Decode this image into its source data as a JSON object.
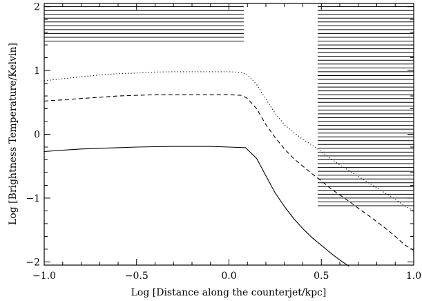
{
  "chart_data": {
    "type": "line",
    "title": "",
    "xlabel": "Log [Distance along the counterjet/kpc]",
    "ylabel": "Log [Brightness Temperature/Kelvin]",
    "xlim": [
      -1.0,
      1.0
    ],
    "ylim": [
      -2.05,
      2.05
    ],
    "xticks": [
      -1.0,
      -0.5,
      0.0,
      0.5,
      1.0
    ],
    "xtick_labels": [
      "−1.0",
      "−0.5",
      "0.0",
      "0.5",
      "1.0"
    ],
    "yticks": [
      -2,
      -1,
      0,
      1,
      2
    ],
    "ytick_labels": [
      "−2",
      "−1",
      "0",
      "1",
      "2"
    ],
    "grid": false,
    "legend": "none",
    "series": [
      {
        "style": "dotted",
        "points": [
          [
            -1.0,
            0.84
          ],
          [
            -0.9,
            0.87
          ],
          [
            -0.8,
            0.9
          ],
          [
            -0.7,
            0.93
          ],
          [
            -0.6,
            0.95
          ],
          [
            -0.5,
            0.96
          ],
          [
            -0.4,
            0.975
          ],
          [
            -0.3,
            0.98
          ],
          [
            -0.2,
            0.98
          ],
          [
            -0.1,
            0.98
          ],
          [
            0.0,
            0.98
          ],
          [
            0.07,
            0.97
          ],
          [
            0.1,
            0.93
          ],
          [
            0.15,
            0.78
          ],
          [
            0.2,
            0.55
          ],
          [
            0.25,
            0.33
          ],
          [
            0.3,
            0.15
          ],
          [
            0.35,
            0.03
          ],
          [
            0.4,
            -0.08
          ],
          [
            0.45,
            -0.17
          ],
          [
            0.5,
            -0.27
          ],
          [
            0.55,
            -0.38
          ],
          [
            0.6,
            -0.48
          ],
          [
            0.65,
            -0.57
          ],
          [
            0.7,
            -0.66
          ],
          [
            0.75,
            -0.75
          ],
          [
            0.8,
            -0.84
          ],
          [
            0.85,
            -0.93
          ],
          [
            0.9,
            -1.02
          ],
          [
            0.95,
            -1.12
          ],
          [
            1.0,
            -1.2
          ]
        ]
      },
      {
        "style": "dashed",
        "points": [
          [
            -1.0,
            0.52
          ],
          [
            -0.9,
            0.54
          ],
          [
            -0.8,
            0.56
          ],
          [
            -0.7,
            0.58
          ],
          [
            -0.6,
            0.6
          ],
          [
            -0.5,
            0.61
          ],
          [
            -0.4,
            0.62
          ],
          [
            -0.3,
            0.62
          ],
          [
            -0.2,
            0.62
          ],
          [
            -0.1,
            0.62
          ],
          [
            0.0,
            0.62
          ],
          [
            0.07,
            0.61
          ],
          [
            0.1,
            0.56
          ],
          [
            0.15,
            0.4
          ],
          [
            0.2,
            0.15
          ],
          [
            0.25,
            -0.05
          ],
          [
            0.3,
            -0.23
          ],
          [
            0.35,
            -0.38
          ],
          [
            0.4,
            -0.5
          ],
          [
            0.45,
            -0.62
          ],
          [
            0.5,
            -0.73
          ],
          [
            0.55,
            -0.85
          ],
          [
            0.6,
            -0.95
          ],
          [
            0.65,
            -1.05
          ],
          [
            0.7,
            -1.16
          ],
          [
            0.75,
            -1.26
          ],
          [
            0.8,
            -1.37
          ],
          [
            0.85,
            -1.48
          ],
          [
            0.9,
            -1.6
          ],
          [
            0.95,
            -1.73
          ],
          [
            1.0,
            -1.82
          ]
        ]
      },
      {
        "style": "solid",
        "points": [
          [
            -1.0,
            -0.27
          ],
          [
            -0.9,
            -0.25
          ],
          [
            -0.8,
            -0.23
          ],
          [
            -0.7,
            -0.22
          ],
          [
            -0.6,
            -0.21
          ],
          [
            -0.5,
            -0.2
          ],
          [
            -0.4,
            -0.195
          ],
          [
            -0.3,
            -0.19
          ],
          [
            -0.2,
            -0.19
          ],
          [
            -0.1,
            -0.19
          ],
          [
            0.0,
            -0.2
          ],
          [
            0.09,
            -0.21
          ],
          [
            0.15,
            -0.38
          ],
          [
            0.2,
            -0.65
          ],
          [
            0.25,
            -0.92
          ],
          [
            0.3,
            -1.13
          ],
          [
            0.35,
            -1.32
          ],
          [
            0.4,
            -1.48
          ],
          [
            0.45,
            -1.62
          ],
          [
            0.5,
            -1.74
          ],
          [
            0.55,
            -1.86
          ],
          [
            0.6,
            -1.97
          ],
          [
            0.65,
            -2.07
          ]
        ]
      }
    ],
    "hatched_regions": [
      {
        "x": [
          -1.0,
          0.08
        ],
        "y": [
          1.46,
          2.0
        ]
      },
      {
        "x": [
          0.48,
          1.0
        ],
        "y": [
          -1.14,
          2.0
        ]
      }
    ],
    "hatch_spacing": 0.06
  }
}
